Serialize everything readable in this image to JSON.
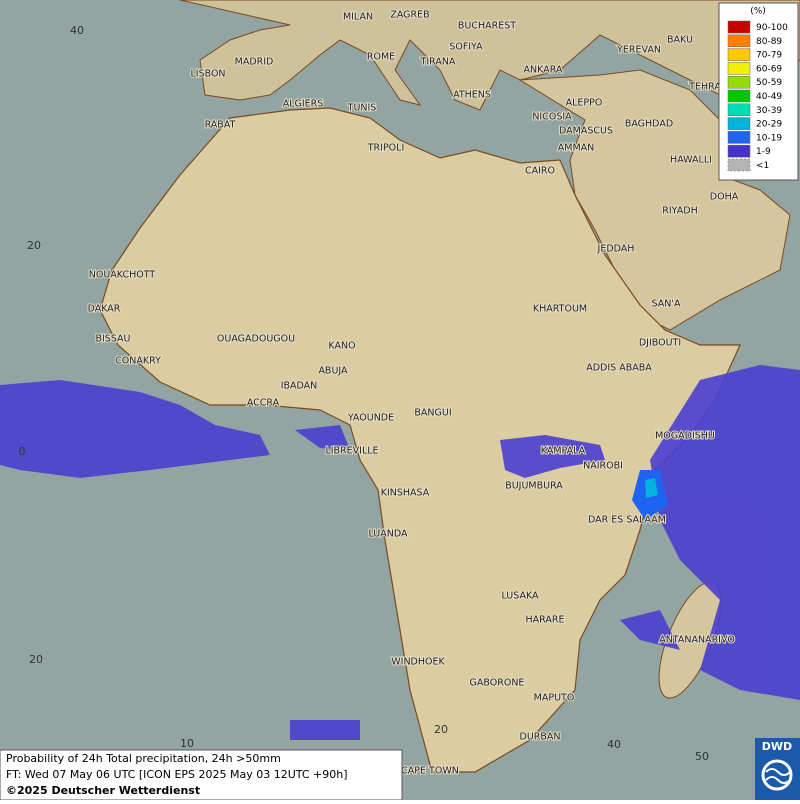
{
  "map": {
    "cities": [
      "MILAN",
      "ZAGREB",
      "BUCHAREST",
      "BAKU",
      "SOFIYA",
      "ROME",
      "TIRANA",
      "YEREVAN",
      "MADRID",
      "ANKARA",
      "LISBON",
      "TEHRA",
      "ATHENS",
      "ALGIERS",
      "TUNIS",
      "ALEPPO",
      "NICOSIA",
      "BAGHDAD",
      "RABAT",
      "DAMASCUS",
      "TRIPOLI",
      "AMMAN",
      "HAWALLI",
      "CAIRO",
      "DOHA",
      "RIYADH",
      "JEDDAH",
      "NOUAKCHOTT",
      "DAKAR",
      "KHARTOUM",
      "SAN'A",
      "BISSAU",
      "OUAGADOUGOU",
      "KANO",
      "DJIBOUTI",
      "CONAKRY",
      "ABUJA",
      "ADDIS ABABA",
      "IBADAN",
      "ACCRA",
      "YAOUNDE",
      "BANGUI",
      "MOGADISHU",
      "LIBREVILLE",
      "KAMPALA",
      "NAIROBI",
      "BUJUMBURA",
      "KINSHASA",
      "DAR ES SALAAM",
      "LUANDA",
      "LUSAKA",
      "HARARE",
      "ANTANANARIVO",
      "WINDHOEK",
      "GABORONE",
      "MAPUTO",
      "DURBAN",
      "CAPE TOWN"
    ],
    "grid_labels": [
      "40",
      "20",
      "0",
      "20",
      "10",
      "20",
      "40",
      "50"
    ]
  },
  "legend": {
    "title": "(%)",
    "items": [
      {
        "label": "90-100",
        "color": "#c80000"
      },
      {
        "label": "80-89",
        "color": "#ff7f00"
      },
      {
        "label": "70-79",
        "color": "#ffc800"
      },
      {
        "label": "60-69",
        "color": "#f0f000"
      },
      {
        "label": "50-59",
        "color": "#96dc00"
      },
      {
        "label": "40-49",
        "color": "#00c800"
      },
      {
        "label": "30-39",
        "color": "#00dcb4"
      },
      {
        "label": "20-29",
        "color": "#00b4dc"
      },
      {
        "label": "10-19",
        "color": "#1e64f0"
      },
      {
        "label": "1-9",
        "color": "#4632c8"
      },
      {
        "label": "<1",
        "color": "#b4b4b4"
      }
    ]
  },
  "caption": {
    "lines": [
      "Probability of 24h Total precipitation, 24h >50mm",
      "FT: Wed 07 May 06 UTC [ICON EPS 2025 May 03 12UTC +90h]",
      "©2025 Deutscher Wetterdienst"
    ]
  },
  "logo": "DWD"
}
